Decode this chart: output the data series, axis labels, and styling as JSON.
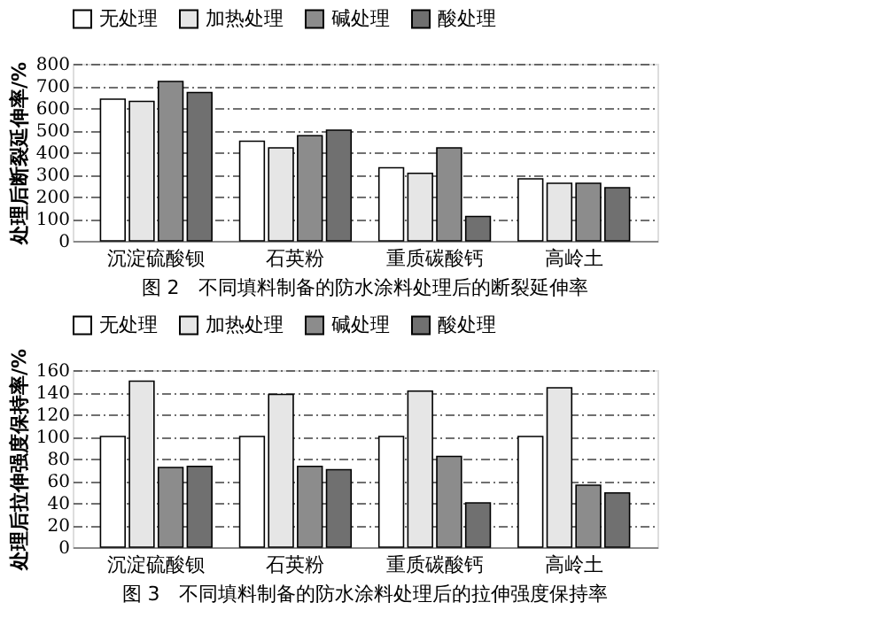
{
  "chart_data": [
    {
      "type": "bar",
      "title": "图 2　不同填料制备的防水涂料处理后的断裂延伸率",
      "ylabel": "处理后断裂延伸率/%",
      "categories": [
        "沉淀硫酸钡",
        "石英粉",
        "重质碳酸钙",
        "高岭土"
      ],
      "series": [
        {
          "name": "无处理",
          "color": "#ffffff",
          "values": [
            640,
            450,
            330,
            280
          ]
        },
        {
          "name": "加热处理",
          "color": "#e6e6e6",
          "values": [
            630,
            420,
            305,
            260
          ]
        },
        {
          "name": "碱处理",
          "color": "#8c8c8c",
          "values": [
            720,
            475,
            420,
            260
          ]
        },
        {
          "name": "酸处理",
          "color": "#707070",
          "values": [
            670,
            500,
            110,
            240
          ]
        }
      ],
      "ylim": [
        0,
        800
      ],
      "yticks": [
        0,
        100,
        200,
        300,
        400,
        500,
        600,
        700,
        800
      ],
      "grid": "y",
      "legend": "top"
    },
    {
      "type": "bar",
      "title": "图 3　不同填料制备的防水涂料处理后的拉伸强度保持率",
      "ylabel": "处理后拉伸强度保持率/%",
      "categories": [
        "沉淀硫酸钡",
        "石英粉",
        "重质碳酸钙",
        "高岭土"
      ],
      "series": [
        {
          "name": "无处理",
          "color": "#ffffff",
          "values": [
            100,
            100,
            100,
            100
          ]
        },
        {
          "name": "加热处理",
          "color": "#e6e6e6",
          "values": [
            150,
            138,
            141,
            144
          ]
        },
        {
          "name": "碱处理",
          "color": "#8c8c8c",
          "values": [
            72,
            73,
            82,
            56
          ]
        },
        {
          "name": "酸处理",
          "color": "#707070",
          "values": [
            73,
            70,
            40,
            49
          ]
        }
      ],
      "ylim": [
        0,
        160
      ],
      "yticks": [
        0,
        20,
        40,
        60,
        80,
        100,
        120,
        140,
        160
      ],
      "grid": "y",
      "legend": "top"
    }
  ]
}
